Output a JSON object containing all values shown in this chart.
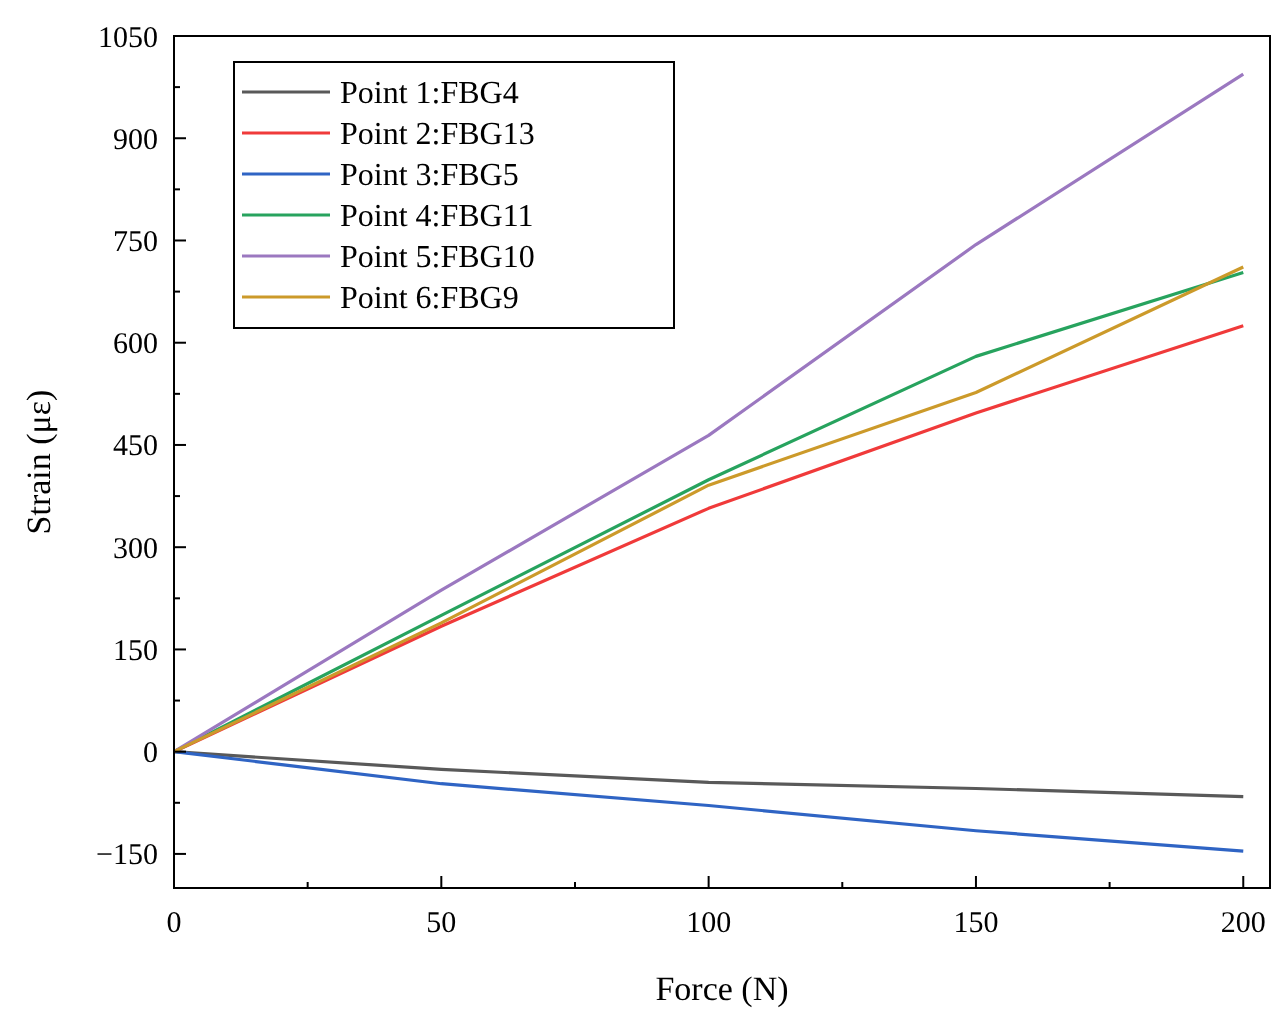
{
  "chart_data": {
    "type": "line",
    "xlabel": "Force (N)",
    "ylabel": "Strain (με)",
    "x": [
      0,
      50,
      100,
      150,
      200
    ],
    "series": [
      {
        "name": "Point 1:FBG4",
        "color": "#595959",
        "values": [
          0,
          -26,
          -45,
          -54,
          -66
        ]
      },
      {
        "name": "Point 2:FBG13",
        "color": "#f03a3a",
        "values": [
          0,
          184,
          357,
          497,
          625
        ]
      },
      {
        "name": "Point 3:FBG5",
        "color": "#2f64c4",
        "values": [
          0,
          -47,
          -79,
          -116,
          -146
        ]
      },
      {
        "name": "Point 4:FBG11",
        "color": "#27a35e",
        "values": [
          0,
          200,
          399,
          580,
          703
        ]
      },
      {
        "name": "Point 5:FBG10",
        "color": "#9b78c0",
        "values": [
          0,
          237,
          464,
          744,
          994
        ]
      },
      {
        "name": "Point 6:FBG9",
        "color": "#cc9a2a",
        "values": [
          0,
          189,
          391,
          527,
          711
        ]
      }
    ],
    "xlim": [
      0,
      205
    ],
    "ylim": [
      -200,
      1050
    ],
    "xticks": [
      0,
      {
        "value": 25,
        "label": null
      },
      50,
      {
        "value": 75,
        "label": null
      },
      100,
      {
        "value": 125,
        "label": null
      },
      150,
      {
        "value": 175,
        "label": null
      },
      200
    ],
    "yticks": [
      {
        "value": -150,
        "label": "−150"
      },
      {
        "value": -75,
        "label": null
      },
      0,
      {
        "value": 75,
        "label": null
      },
      150,
      {
        "value": 225,
        "label": null
      },
      300,
      {
        "value": 375,
        "label": null
      },
      450,
      {
        "value": 525,
        "label": null
      },
      600,
      {
        "value": 675,
        "label": null
      },
      750,
      {
        "value": 825,
        "label": null
      },
      900,
      {
        "value": 975,
        "label": null
      },
      1050
    ],
    "grid": false,
    "legend": "top left",
    "marker": "none",
    "line_style": "solid"
  }
}
